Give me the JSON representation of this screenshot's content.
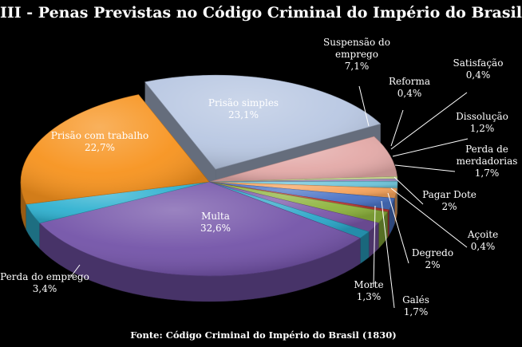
{
  "chart_data": {
    "type": "pie",
    "title": "III - Penas Previstas no Código Criminal do Império do Brasil",
    "source": "Fonte: Código Criminal do Império do Brasil (1830)",
    "slices": [
      {
        "line1": "Prisão simples",
        "line2": "23,1%",
        "value": 23.1,
        "color": "#b8c7e2"
      },
      {
        "line1": "Suspensão do emprego",
        "line2": "7,1%",
        "value": 7.1,
        "color": "#e3a9a7"
      },
      {
        "line1": "Reforma",
        "line2": "0,4%",
        "value": 0.4,
        "color": "#c8d88a"
      },
      {
        "line1": "Satisfação",
        "line2": "0,4%",
        "value": 0.4,
        "color": "#a28ec2"
      },
      {
        "line1": "Dissolução",
        "line2": "1,2%",
        "value": 1.2,
        "color": "#6cc3d8"
      },
      {
        "line1": "Perda de merdadorias",
        "line2": "1,7%",
        "value": 1.7,
        "color": "#f5a25a"
      },
      {
        "line1": "Pagar Dote",
        "line2": "2%",
        "value": 2.0,
        "color": "#4a73c6"
      },
      {
        "line1": "Açoite",
        "line2": "0,4%",
        "value": 0.4,
        "color": "#c03a37"
      },
      {
        "line1": "Degredo",
        "line2": "2%",
        "value": 2.0,
        "color": "#8db33c"
      },
      {
        "line1": "Galés",
        "line2": "1,7%",
        "value": 1.7,
        "color": "#7a56a8"
      },
      {
        "line1": "Morte",
        "line2": "1,3%",
        "value": 1.3,
        "color": "#2aa6c8"
      },
      {
        "line1": "Multa",
        "line2": "32,6%",
        "value": 32.6,
        "color": "#7353a8"
      },
      {
        "line1": "Perda do emprego",
        "line2": "3,4%",
        "value": 3.4,
        "color": "#2fb1d0"
      },
      {
        "line1": "Prisão com trabalho",
        "line2": "22,7%",
        "value": 22.7,
        "color": "#f7931e"
      }
    ]
  }
}
